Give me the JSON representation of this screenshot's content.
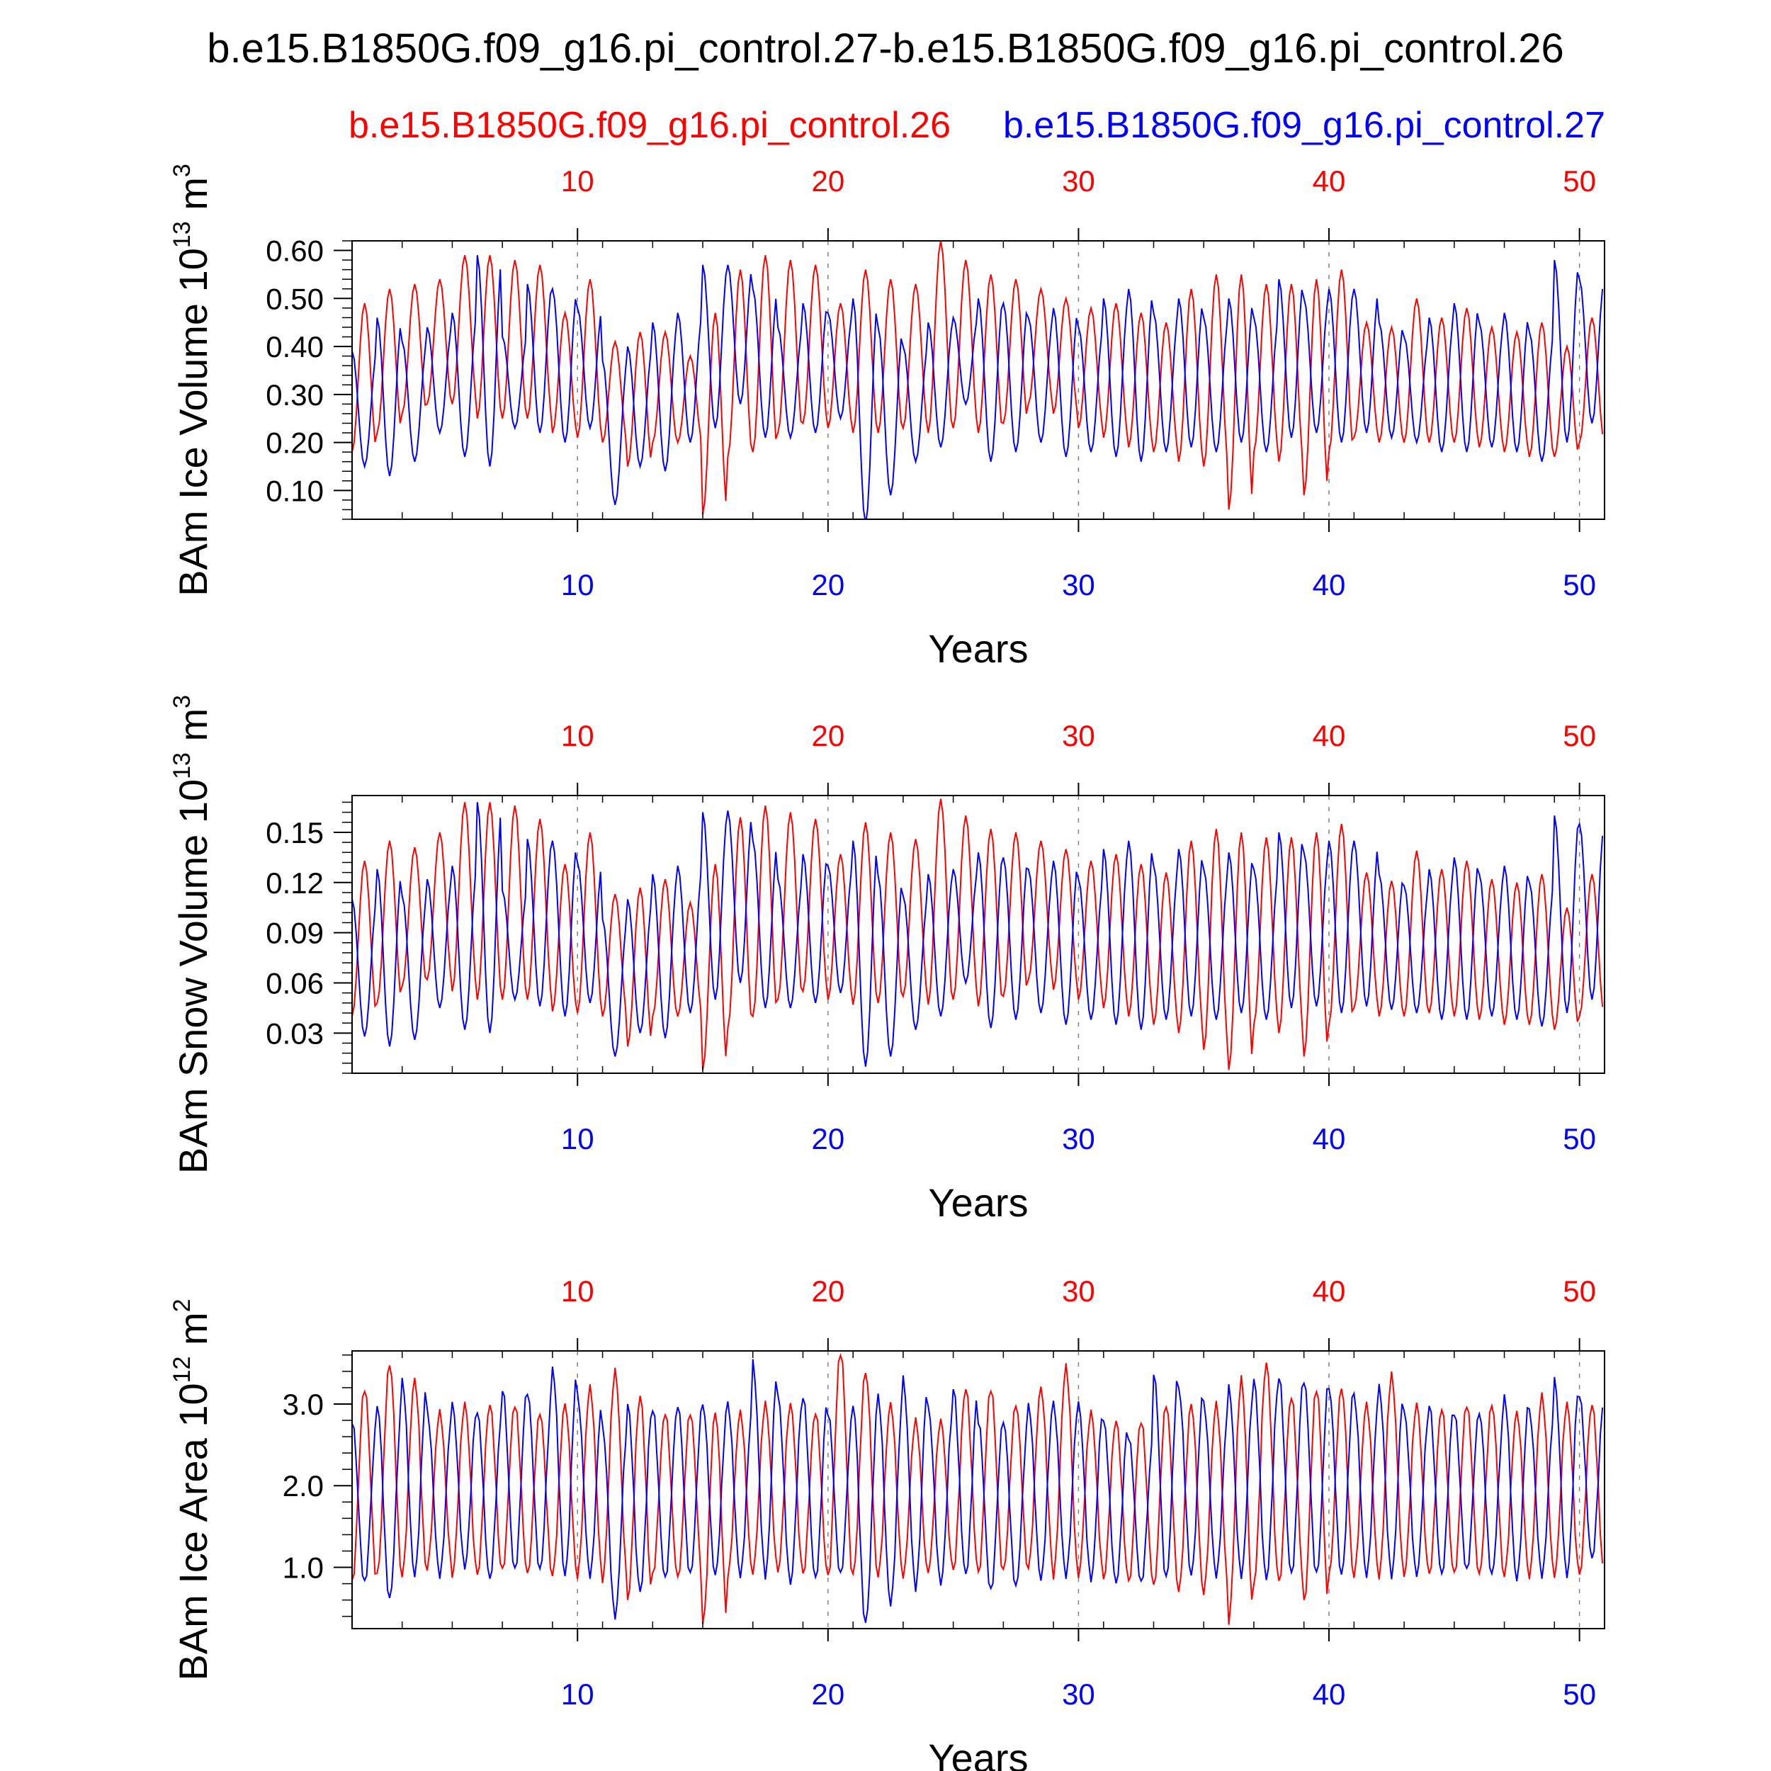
{
  "figure": {
    "title": "b.e15.B1850G.f09_g16.pi_control.27-b.e15.B1850G.f09_g16.pi_control.26",
    "legend_red": "b.e15.B1850G.f09_g16.pi_control.26",
    "legend_blue": "b.e15.B1850G.f09_g16.pi_control.27",
    "colors": {
      "red": "#ff0000",
      "blue": "#0000ff",
      "grid": "#808080"
    }
  },
  "chart_data": [
    {
      "type": "line",
      "title": "",
      "xlabel": "Years",
      "ylabel_main": "BAm Ice Volume 10",
      "ylabel_exp": "13",
      "ylabel_unit": " m",
      "ylabel_unit_exp": "3",
      "xlim": [
        1,
        51
      ],
      "xticks": [
        10,
        20,
        30,
        40,
        50
      ],
      "xtick_labels": [
        "10",
        "20",
        "30",
        "40",
        "50"
      ],
      "ylim": [
        0.04,
        0.62
      ],
      "yticks": [
        0.1,
        0.2,
        0.3,
        0.4,
        0.5,
        0.6
      ],
      "ytick_labels": [
        "0.10",
        "0.20",
        "0.30",
        "0.40",
        "0.50",
        "0.60"
      ],
      "series": [
        {
          "name": "b.e15.B1850G.f09_g16.pi_control.26",
          "color": "#ff0000",
          "annual_max": [
            0.49,
            0.52,
            0.53,
            0.54,
            0.59,
            0.59,
            0.58,
            0.57,
            0.47,
            0.54,
            0.41,
            0.43,
            0.43,
            0.38,
            0.47,
            0.56,
            0.59,
            0.58,
            0.57,
            0.49,
            0.56,
            0.54,
            0.53,
            0.62,
            0.58,
            0.55,
            0.54,
            0.52,
            0.5,
            0.48,
            0.49,
            0.47,
            0.45,
            0.52,
            0.55,
            0.55,
            0.53,
            0.53,
            0.54,
            0.56,
            0.45,
            0.44,
            0.5,
            0.46,
            0.48,
            0.44,
            0.43,
            0.45,
            0.4,
            0.46
          ],
          "annual_min": [
            0.18,
            0.22,
            0.26,
            0.28,
            0.28,
            0.25,
            0.25,
            0.25,
            0.22,
            0.21,
            0.2,
            0.15,
            0.2,
            0.2,
            0.05,
            0.17,
            0.18,
            0.22,
            0.24,
            0.23,
            0.22,
            0.22,
            0.23,
            0.22,
            0.23,
            0.22,
            0.24,
            0.28,
            0.26,
            0.23,
            0.21,
            0.19,
            0.18,
            0.16,
            0.15,
            0.06,
            0.18,
            0.16,
            0.09,
            0.18,
            0.21,
            0.2,
            0.2,
            0.2,
            0.2,
            0.19,
            0.18,
            0.17,
            0.17,
            0.2
          ],
          "phase_shift": 0.5
        },
        {
          "name": "b.e15.B1850G.f09_g16.pi_control.27",
          "color": "#0000ff",
          "annual_max": [
            0.39,
            0.46,
            0.41,
            0.44,
            0.47,
            0.59,
            0.42,
            0.53,
            0.52,
            0.48,
            0.37,
            0.4,
            0.45,
            0.47,
            0.57,
            0.57,
            0.52,
            0.44,
            0.49,
            0.47,
            0.5,
            0.44,
            0.4,
            0.45,
            0.46,
            0.5,
            0.49,
            0.46,
            0.48,
            0.44,
            0.5,
            0.52,
            0.47,
            0.5,
            0.46,
            0.5,
            0.46,
            0.54,
            0.5,
            0.52,
            0.52,
            0.45,
            0.42,
            0.46,
            0.49,
            0.45,
            0.47,
            0.43,
            0.58,
            0.54
          ],
          "annual_min": [
            0.15,
            0.13,
            0.16,
            0.22,
            0.17,
            0.15,
            0.23,
            0.22,
            0.2,
            0.23,
            0.07,
            0.15,
            0.14,
            0.2,
            0.23,
            0.28,
            0.21,
            0.21,
            0.22,
            0.25,
            0.03,
            0.09,
            0.16,
            0.19,
            0.28,
            0.16,
            0.18,
            0.2,
            0.17,
            0.18,
            0.17,
            0.16,
            0.18,
            0.19,
            0.18,
            0.2,
            0.18,
            0.21,
            0.22,
            0.2,
            0.22,
            0.21,
            0.2,
            0.18,
            0.18,
            0.19,
            0.18,
            0.16,
            0.2,
            0.24
          ],
          "phase_shift": 0.0
        }
      ]
    },
    {
      "type": "line",
      "title": "",
      "xlabel": "Years",
      "ylabel_main": "BAm Snow Volume 10",
      "ylabel_exp": "13",
      "ylabel_unit": " m",
      "ylabel_unit_exp": "3",
      "xlim": [
        1,
        51
      ],
      "xticks": [
        10,
        20,
        30,
        40,
        50
      ],
      "xtick_labels": [
        "10",
        "20",
        "30",
        "40",
        "50"
      ],
      "ylim": [
        0.006,
        0.172
      ],
      "yticks": [
        0.03,
        0.06,
        0.09,
        0.12,
        0.15
      ],
      "ytick_labels": [
        "0.03",
        "0.06",
        "0.09",
        "0.12",
        "0.15"
      ],
      "series": [
        {
          "name": "b.e15.B1850G.f09_g16.pi_control.26",
          "color": "#ff0000",
          "annual_max": [
            0.133,
            0.145,
            0.141,
            0.15,
            0.168,
            0.168,
            0.166,
            0.158,
            0.131,
            0.15,
            0.113,
            0.117,
            0.122,
            0.108,
            0.131,
            0.159,
            0.166,
            0.162,
            0.158,
            0.137,
            0.156,
            0.15,
            0.146,
            0.17,
            0.16,
            0.152,
            0.15,
            0.145,
            0.14,
            0.133,
            0.137,
            0.131,
            0.126,
            0.145,
            0.152,
            0.15,
            0.147,
            0.147,
            0.15,
            0.155,
            0.126,
            0.121,
            0.139,
            0.128,
            0.133,
            0.122,
            0.12,
            0.125,
            0.105,
            0.125
          ],
          "annual_min": [
            0.04,
            0.048,
            0.058,
            0.062,
            0.055,
            0.05,
            0.05,
            0.05,
            0.043,
            0.042,
            0.04,
            0.022,
            0.04,
            0.04,
            0.008,
            0.033,
            0.04,
            0.05,
            0.055,
            0.05,
            0.047,
            0.048,
            0.052,
            0.047,
            0.05,
            0.046,
            0.052,
            0.062,
            0.056,
            0.05,
            0.045,
            0.04,
            0.035,
            0.03,
            0.02,
            0.008,
            0.035,
            0.03,
            0.016,
            0.035,
            0.045,
            0.04,
            0.04,
            0.042,
            0.04,
            0.038,
            0.035,
            0.035,
            0.032,
            0.04
          ],
          "phase_shift": 0.5
        },
        {
          "name": "b.e15.B1850G.f09_g16.pi_control.27",
          "color": "#0000ff",
          "annual_max": [
            0.11,
            0.128,
            0.112,
            0.122,
            0.13,
            0.168,
            0.115,
            0.146,
            0.145,
            0.132,
            0.098,
            0.11,
            0.125,
            0.13,
            0.162,
            0.163,
            0.145,
            0.122,
            0.137,
            0.13,
            0.145,
            0.124,
            0.112,
            0.125,
            0.128,
            0.138,
            0.135,
            0.128,
            0.133,
            0.122,
            0.14,
            0.145,
            0.13,
            0.14,
            0.128,
            0.138,
            0.128,
            0.15,
            0.138,
            0.145,
            0.145,
            0.125,
            0.118,
            0.128,
            0.135,
            0.125,
            0.13,
            0.12,
            0.16,
            0.155
          ],
          "annual_min": [
            0.028,
            0.022,
            0.026,
            0.045,
            0.032,
            0.03,
            0.05,
            0.046,
            0.04,
            0.048,
            0.016,
            0.03,
            0.027,
            0.042,
            0.05,
            0.06,
            0.045,
            0.045,
            0.048,
            0.054,
            0.01,
            0.016,
            0.032,
            0.04,
            0.06,
            0.033,
            0.038,
            0.042,
            0.035,
            0.038,
            0.035,
            0.032,
            0.038,
            0.04,
            0.038,
            0.042,
            0.038,
            0.045,
            0.046,
            0.042,
            0.046,
            0.044,
            0.042,
            0.038,
            0.038,
            0.04,
            0.038,
            0.034,
            0.042,
            0.05
          ],
          "phase_shift": 0.0
        }
      ]
    },
    {
      "type": "line",
      "title": "",
      "xlabel": "Years",
      "ylabel_main": "BAm Ice Area 10",
      "ylabel_exp": "12",
      "ylabel_unit": " m",
      "ylabel_unit_exp": "2",
      "xlim": [
        1,
        51
      ],
      "xticks": [
        10,
        20,
        30,
        40,
        50
      ],
      "xtick_labels": [
        "10",
        "20",
        "30",
        "40",
        "50"
      ],
      "ylim": [
        0.25,
        3.65
      ],
      "yticks": [
        1.0,
        2.0,
        3.0
      ],
      "ytick_labels": [
        "1.0",
        "2.0",
        "3.0"
      ],
      "series": [
        {
          "name": "b.e15.B1850G.f09_g16.pi_control.26",
          "color": "#ff0000",
          "annual_max": [
            3.2,
            3.5,
            3.3,
            2.9,
            3.0,
            3.0,
            3.0,
            2.9,
            3.0,
            3.2,
            3.4,
            3.1,
            2.9,
            2.9,
            2.9,
            2.9,
            3.0,
            3.0,
            2.9,
            3.65,
            3.4,
            3.0,
            2.8,
            2.8,
            3.2,
            3.2,
            3.0,
            3.2,
            3.45,
            2.9,
            2.8,
            2.8,
            3.0,
            3.0,
            3.0,
            3.3,
            3.5,
            3.1,
            3.2,
            3.2,
            3.0,
            3.35,
            3.0,
            2.95,
            3.0,
            3.0,
            2.9,
            3.1,
            3.0,
            3.0
          ],
          "annual_min": [
            0.8,
            0.9,
            0.9,
            1.0,
            0.9,
            0.9,
            0.95,
            0.9,
            0.9,
            0.9,
            0.85,
            0.6,
            0.9,
            0.85,
            0.3,
            0.9,
            0.95,
            0.95,
            0.9,
            0.85,
            0.9,
            0.9,
            0.9,
            0.95,
            0.95,
            0.9,
            0.95,
            1.0,
            0.9,
            0.9,
            0.85,
            0.8,
            0.75,
            0.7,
            0.7,
            0.35,
            0.8,
            0.8,
            0.55,
            0.9,
            0.9,
            0.9,
            0.9,
            0.9,
            0.9,
            0.9,
            0.9,
            0.9,
            0.9,
            0.9
          ],
          "phase_shift": 0.5
        },
        {
          "name": "b.e15.B1850G.f09_g16.pi_control.27",
          "color": "#0000ff",
          "annual_max": [
            2.8,
            3.0,
            3.3,
            2.9,
            3.0,
            2.9,
            3.2,
            3.15,
            3.45,
            3.1,
            2.7,
            3.0,
            2.95,
            3.0,
            3.0,
            3.0,
            3.5,
            3.1,
            3.1,
            2.9,
            3.0,
            3.1,
            3.3,
            2.95,
            3.2,
            2.8,
            2.8,
            3.0,
            3.0,
            3.0,
            2.8,
            2.6,
            3.4,
            3.2,
            3.0,
            3.2,
            3.3,
            3.35,
            3.3,
            3.2,
            3.1,
            3.2,
            2.9,
            3.0,
            2.9,
            2.9,
            3.1,
            2.9,
            3.3,
            3.1
          ],
          "annual_min": [
            0.8,
            0.6,
            0.9,
            0.9,
            1.0,
            0.85,
            0.95,
            0.95,
            0.9,
            0.9,
            0.4,
            0.7,
            0.85,
            0.9,
            0.9,
            0.9,
            0.9,
            0.8,
            0.85,
            0.9,
            0.3,
            0.55,
            0.75,
            0.8,
            0.9,
            0.7,
            0.75,
            0.85,
            0.9,
            0.85,
            0.8,
            0.8,
            0.85,
            0.9,
            0.9,
            0.9,
            0.85,
            0.9,
            0.9,
            0.9,
            0.9,
            0.9,
            0.9,
            0.9,
            0.95,
            0.9,
            0.85,
            0.9,
            0.9,
            1.1
          ],
          "phase_shift": 0.0
        }
      ]
    }
  ]
}
